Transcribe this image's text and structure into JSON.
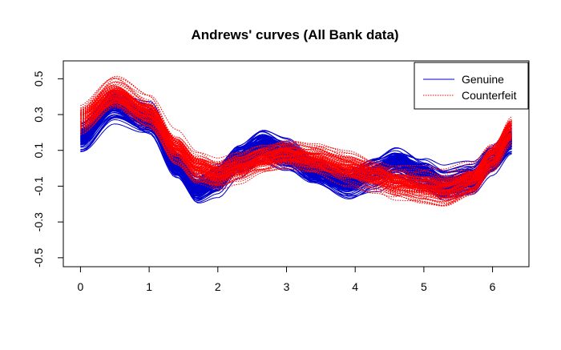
{
  "chart_data": {
    "type": "line",
    "title": "Andrews' curves (All Bank data)",
    "xlabel": "",
    "ylabel": "",
    "xlim": [
      -0.25,
      6.53
    ],
    "ylim": [
      -0.55,
      0.6
    ],
    "xticks": [
      0,
      1,
      2,
      3,
      4,
      5,
      6
    ],
    "xtick_labels": [
      "0",
      "1",
      "2",
      "3",
      "4",
      "5",
      "6"
    ],
    "yticks": [
      -0.5,
      -0.3,
      -0.1,
      0.1,
      0.3,
      0.5
    ],
    "ytick_labels": [
      "-0.5",
      "-0.3",
      "-0.1",
      "0.1",
      "0.3",
      "0.5"
    ],
    "grid": false,
    "legend_position": "top-right",
    "series": [
      {
        "name": "Genuine",
        "color": "#0000CD",
        "line_style": "solid",
        "curve_count": 100,
        "x": [
          0,
          0.5,
          1.0,
          1.4,
          1.7,
          2.0,
          2.3,
          2.65,
          3.0,
          3.4,
          3.9,
          4.3,
          4.6,
          5.0,
          5.3,
          5.7,
          6.0,
          6.28
        ],
        "y": [
          0.17,
          0.36,
          0.28,
          0.03,
          -0.11,
          -0.06,
          0.05,
          0.13,
          0.08,
          -0.01,
          -0.08,
          -0.02,
          0.03,
          -0.04,
          -0.1,
          -0.07,
          0.04,
          0.16
        ]
      },
      {
        "name": "Counterfeit",
        "color": "#FF0000",
        "line_style": "dotted",
        "curve_count": 100,
        "x": [
          0,
          0.5,
          1.0,
          1.4,
          1.7,
          2.0,
          2.3,
          2.65,
          3.0,
          3.4,
          3.9,
          4.3,
          4.6,
          5.0,
          5.3,
          5.7,
          6.0,
          6.28
        ],
        "y": [
          0.27,
          0.41,
          0.31,
          0.11,
          0.0,
          -0.04,
          0.0,
          0.05,
          0.08,
          0.05,
          0.0,
          -0.04,
          -0.08,
          -0.1,
          -0.12,
          -0.07,
          0.06,
          0.21
        ]
      }
    ]
  }
}
